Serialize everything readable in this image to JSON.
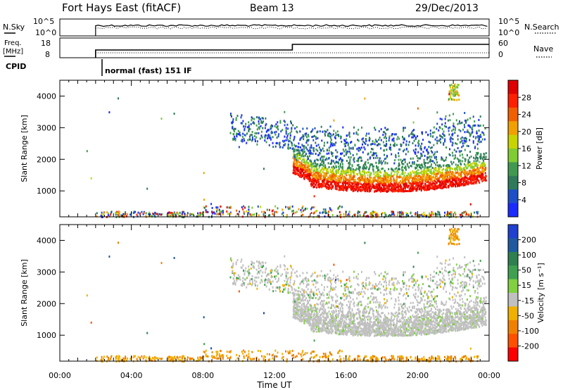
{
  "header": {
    "title": "Fort Hays East (fitACF)",
    "beam": "Beam 13",
    "date": "29/Dec/2013"
  },
  "panel_nsky": {
    "left_label": "N.Sky",
    "left_ticks": [
      "10^5",
      "10^0"
    ],
    "right_ticks": [
      "10^5",
      "10^0"
    ],
    "right_label": "N.Search",
    "right_label_style": "dotted"
  },
  "panel_freq": {
    "left_label_line1": "Freq.",
    "left_label_line2": "[MHz]",
    "left_ticks": [
      "18",
      "8"
    ],
    "right_ticks": [
      "60",
      "0"
    ],
    "right_label": "Nave",
    "right_label_style": "dotted",
    "cpid_label": "CPID",
    "cpid_text": "normal (fast) 151 IF"
  },
  "chart_data": [
    {
      "type": "heatmap",
      "name": "power",
      "ylabel": "Slant Range [km]",
      "yticks": [
        1000,
        2000,
        3000,
        4000
      ],
      "ylim": [
        180,
        4500
      ],
      "xlim_hours": [
        0,
        24
      ],
      "colorbar": {
        "label": "Power [dB]",
        "ticks": [
          "28",
          "24",
          "20",
          "16",
          "12",
          "8",
          "4"
        ],
        "colors": [
          "#1a2bff",
          "#1f4fc8",
          "#2f7a5a",
          "#3f9a50",
          "#7fcc33",
          "#c8d400",
          "#f0a000",
          "#f06000",
          "#ff2000",
          "#e00000"
        ]
      }
    },
    {
      "type": "heatmap",
      "name": "velocity",
      "ylabel": "Slant Range [km]",
      "yticks": [
        1000,
        2000,
        3000,
        4000
      ],
      "ylim": [
        180,
        4500
      ],
      "xlim_hours": [
        0,
        24
      ],
      "colorbar": {
        "label": "Velocity [m s⁻¹]",
        "ticks": [
          "200",
          "100",
          "50",
          "15",
          "-15",
          "-50",
          "-100",
          "-200"
        ],
        "colors": [
          "#2040d0",
          "#1f5aa0",
          "#2f7f4f",
          "#3fa050",
          "#80d040",
          "#c0c0c0",
          "#f0b000",
          "#f08000",
          "#ff5000",
          "#ff0000"
        ]
      }
    }
  ],
  "xaxis": {
    "ticks": [
      "00:00",
      "04:00",
      "08:00",
      "12:00",
      "16:00",
      "20:00",
      "00:00"
    ],
    "label": "Time UT"
  }
}
